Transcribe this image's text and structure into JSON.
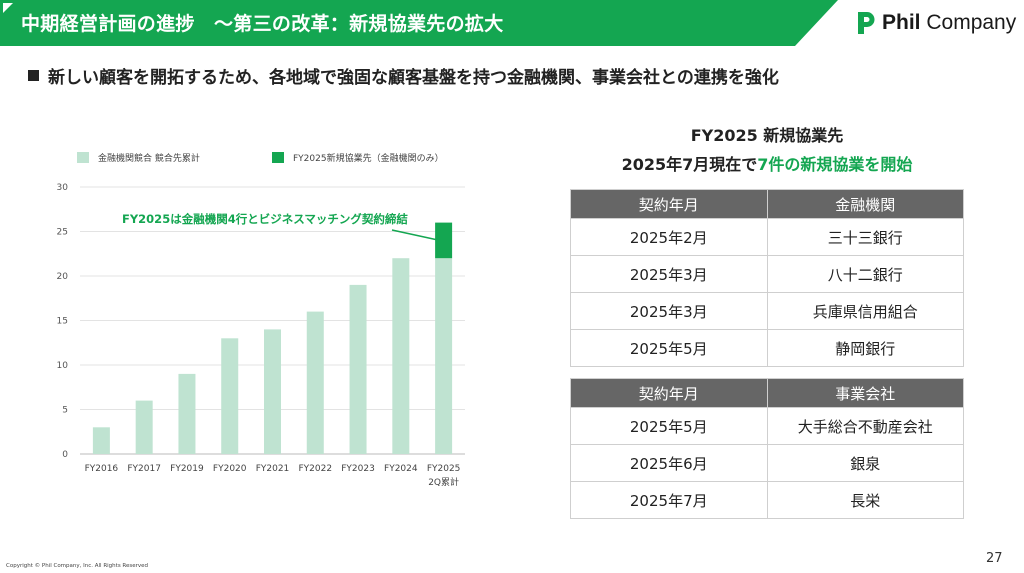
{
  "header": {
    "title": "中期経営計画の進捗　～第三の改革：新規協業先の拡大",
    "brand": "Phil Company",
    "brand_bold": "Phil",
    "brand_rest": " Company"
  },
  "subheading": "新しい顧客を開拓するため、各地域で強固な顧客基盤を持つ金融機関、事業会社との連携を強化",
  "chart_data": {
    "type": "bar",
    "categories": [
      "FY2016",
      "FY2017",
      "FY2019",
      "FY2020",
      "FY2021",
      "FY2022",
      "FY2023",
      "FY2024",
      "FY2025"
    ],
    "category_sublabels": [
      "",
      "",
      "",
      "",
      "",
      "",
      "",
      "",
      "2Q累計"
    ],
    "series": [
      {
        "name": "金融機関競合 競合先累計",
        "values": [
          3,
          6,
          9,
          13,
          14,
          16,
          19,
          22,
          22
        ],
        "color": "#bfe3d1"
      },
      {
        "name": "FY2025新規協業先（金融機関のみ）",
        "values": [
          0,
          0,
          0,
          0,
          0,
          0,
          0,
          0,
          4
        ],
        "color": "#14a651"
      }
    ],
    "stacked": true,
    "ylim": [
      0,
      30
    ],
    "yticks": [
      0,
      5,
      10,
      15,
      20,
      25,
      30
    ],
    "grid": true,
    "legend_position": "top",
    "annotation": "FY2025は金融機関4行とビジネスマッチング契約締結",
    "annotation_color": "#14a651"
  },
  "right_panel": {
    "title_line1": "FY2025 新規協業先",
    "title_line2_prefix": "2025年7月現在で",
    "title_line2_highlight": "7件の新規協業を開始",
    "table_financial": {
      "headers": [
        "契約年月",
        "金融機関"
      ],
      "rows": [
        [
          "2025年2月",
          "三十三銀行"
        ],
        [
          "2025年3月",
          "八十二銀行"
        ],
        [
          "2025年3月",
          "兵庫県信用組合"
        ],
        [
          "2025年5月",
          "静岡銀行"
        ]
      ]
    },
    "table_business": {
      "headers": [
        "契約年月",
        "事業会社"
      ],
      "rows": [
        [
          "2025年5月",
          "大手総合不動産会社"
        ],
        [
          "2025年6月",
          "銀泉"
        ],
        [
          "2025年7月",
          "長栄"
        ]
      ]
    }
  },
  "footer": {
    "copyright": "Copyright © Phil Company, Inc.  All Rights Reserved",
    "page_number": "27"
  },
  "colors": {
    "brand_green": "#14a651",
    "light_green": "#bfe3d1",
    "table_header": "#666666"
  }
}
